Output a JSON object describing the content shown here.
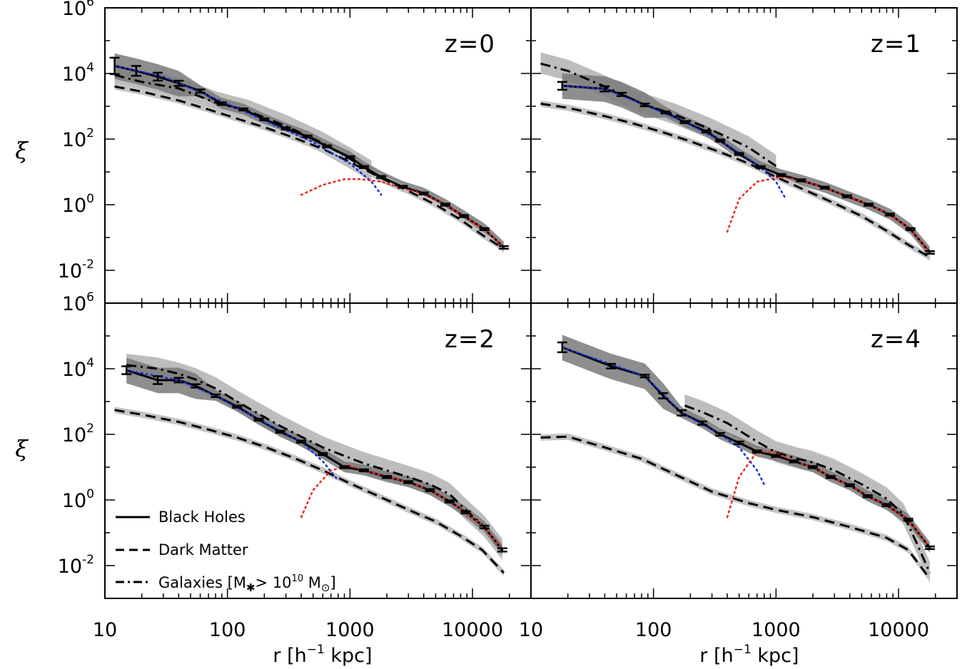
{
  "chart_data": {
    "type": "line",
    "xscale": "log",
    "yscale": "log",
    "xlim": [
      10,
      30000
    ],
    "ylim": [
      0.001,
      1000000
    ],
    "xticks": [
      "10",
      "100",
      "1000",
      "10000"
    ],
    "yticks": [
      {
        "base": "10",
        "exp": "6"
      },
      {
        "base": "10",
        "exp": "4"
      },
      {
        "base": "10",
        "exp": "2"
      },
      {
        "base": "10",
        "exp": "0"
      },
      {
        "base": "10",
        "exp": "-2"
      }
    ],
    "xlabel": "r [h⁻¹ kpc]",
    "xlabel_main": "r  [h",
    "xlabel_exp": "−1",
    "xlabel_tail": " kpc]",
    "ylabel": "ξ",
    "colors": {
      "black_holes": "#000000",
      "dark_matter": "#000000",
      "galaxies": "#000000",
      "one_halo_term": "#1530d8",
      "two_halo_term": "#e8281e",
      "bh_band": "#7a7a7a",
      "galaxy_band": "#bdbdbd",
      "dm_trace": "#c4c4c4"
    },
    "legend": {
      "position": "lower-left of bottom-left panel",
      "entries": [
        {
          "style": "solid",
          "label": "Black Holes"
        },
        {
          "style": "dashed",
          "label": "Dark Matter"
        },
        {
          "style": "dash-dot",
          "label_main": "Galaxies [M",
          "label_sub": "✱",
          "label_mid": "> 10",
          "label_exp": "10",
          "label_tail": " M",
          "label_sun": "⊙",
          "label_end": "]"
        }
      ]
    },
    "panels": [
      {
        "label": "z=0",
        "black_holes": {
          "x": [
            12,
            18,
            27,
            40,
            60,
            90,
            135,
            200,
            300,
            450,
            650,
            1000,
            1300,
            1800,
            2700,
            4000,
            6000,
            8500,
            12500,
            18000
          ],
          "y": [
            17000,
            12000,
            8000,
            5000,
            2900,
            1200,
            800,
            400,
            210,
            120,
            60,
            28,
            14,
            7,
            3.5,
            2.2,
            1.0,
            0.45,
            0.18,
            0.05
          ],
          "err": [
            0.25,
            0.15,
            0.12,
            0.08,
            0.05,
            0.04,
            0.03,
            0.03,
            0.03,
            0.03,
            0.03,
            0.03,
            0.03,
            0.03,
            0.03,
            0.03,
            0.03,
            0.03,
            0.03,
            0.04
          ]
        },
        "dark_matter": {
          "x": [
            12,
            20,
            40,
            70,
            120,
            200,
            350,
            600,
            1000,
            1800,
            3000,
            5000,
            8000,
            12000,
            18000
          ],
          "y": [
            4000,
            2800,
            1500,
            800,
            420,
            230,
            110,
            50,
            20,
            6.5,
            2.6,
            1.0,
            0.35,
            0.12,
            0.045
          ]
        },
        "galaxies": {
          "x": [
            12,
            20,
            40,
            80,
            150,
            300,
            600,
            1000,
            1500
          ],
          "y": [
            9000,
            5500,
            3500,
            1300,
            700,
            250,
            75,
            25,
            10
          ]
        },
        "one_halo": {
          "x": [
            12,
            30,
            80,
            200,
            500,
            1000,
            1500,
            1800
          ],
          "y": [
            17000,
            8000,
            1700,
            370,
            80,
            18,
            5,
            2
          ]
        },
        "two_halo": {
          "x": [
            400,
            600,
            900,
            1200,
            1800,
            2700,
            4000,
            6000,
            8500,
            12500,
            18000
          ],
          "y": [
            2,
            4,
            6,
            6,
            5,
            3.2,
            2.1,
            1.0,
            0.45,
            0.18,
            0.05
          ]
        }
      },
      {
        "label": "z=1",
        "black_holes": {
          "x": [
            18,
            40,
            55,
            85,
            125,
            180,
            270,
            350,
            500,
            750,
            1100,
            1600,
            2500,
            3800,
            5700,
            8500,
            12500,
            18000
          ],
          "y": [
            4200,
            3400,
            2300,
            1100,
            650,
            330,
            170,
            90,
            35,
            14,
            8,
            5.5,
            3.3,
            1.8,
            1.0,
            0.5,
            0.18,
            0.035
          ],
          "err": [
            0.12,
            0.08,
            0.05,
            0.04,
            0.03,
            0.03,
            0.03,
            0.03,
            0.03,
            0.03,
            0.03,
            0.03,
            0.03,
            0.03,
            0.03,
            0.03,
            0.03,
            0.04
          ]
        },
        "dark_matter": {
          "x": [
            12,
            20,
            40,
            70,
            120,
            200,
            350,
            600,
            1000,
            1800,
            3000,
            5000,
            8000,
            12000,
            18000
          ],
          "y": [
            1200,
            900,
            500,
            290,
            160,
            85,
            40,
            18,
            7,
            2.6,
            1.1,
            0.45,
            0.16,
            0.06,
            0.025
          ]
        },
        "galaxies": {
          "x": [
            12,
            20,
            40,
            80,
            150,
            300,
            600,
            1000
          ],
          "y": [
            20000,
            12000,
            4000,
            1200,
            550,
            190,
            55,
            15
          ]
        },
        "one_halo": {
          "x": [
            18,
            40,
            85,
            180,
            350,
            700,
            1000,
            1200
          ],
          "y": [
            4200,
            3400,
            1100,
            330,
            90,
            17,
            5,
            1.5
          ]
        },
        "two_halo": {
          "x": [
            400,
            500,
            700,
            1100,
            1600,
            2500,
            3800,
            5700,
            8500,
            12500,
            18000
          ],
          "y": [
            0.15,
            1.5,
            5,
            7,
            5.5,
            3.3,
            1.8,
            1.0,
            0.5,
            0.18,
            0.035
          ]
        }
      },
      {
        "label": "z=2",
        "black_holes": {
          "x": [
            15,
            27,
            40,
            55,
            80,
            120,
            180,
            270,
            400,
            600,
            900,
            1300,
            2000,
            3000,
            4500,
            6500,
            8800,
            12500,
            17500
          ],
          "y": [
            9000,
            4500,
            4500,
            3000,
            1500,
            700,
            280,
            120,
            60,
            25,
            10,
            8,
            5,
            3.5,
            2.0,
            0.9,
            0.42,
            0.15,
            0.03
          ],
          "err": [
            0.12,
            0.12,
            0.07,
            0.05,
            0.04,
            0.03,
            0.03,
            0.03,
            0.03,
            0.03,
            0.03,
            0.03,
            0.03,
            0.03,
            0.03,
            0.03,
            0.03,
            0.04,
            0.05
          ]
        },
        "dark_matter": {
          "x": [
            12,
            20,
            40,
            70,
            120,
            200,
            350,
            600,
            1000,
            1800,
            3000,
            5000,
            8000,
            12000,
            18000
          ],
          "y": [
            550,
            400,
            240,
            140,
            80,
            42,
            19,
            8,
            3.2,
            1.2,
            0.5,
            0.22,
            0.08,
            0.03,
            0.006
          ]
        },
        "galaxies": {
          "x": [
            15,
            27,
            40,
            55,
            80,
            120,
            180,
            270,
            400,
            600,
            900,
            1300,
            2000,
            3000,
            4500,
            6500,
            8800,
            12500,
            17500
          ],
          "y": [
            13000,
            10000,
            7000,
            4700,
            2500,
            1000,
            420,
            180,
            85,
            40,
            22,
            13,
            8,
            5,
            3,
            1.5,
            0.5,
            0.15,
            0.03
          ]
        },
        "one_halo": {
          "x": [
            15,
            40,
            80,
            180,
            400,
            600,
            800
          ],
          "y": [
            9000,
            4500,
            1500,
            280,
            60,
            15,
            4
          ]
        },
        "two_halo": {
          "x": [
            400,
            500,
            700,
            1000,
            1300,
            2000,
            3000,
            4500,
            6500,
            8800,
            12500,
            17500
          ],
          "y": [
            0.3,
            2,
            8,
            11,
            8,
            5,
            3.5,
            2.0,
            0.9,
            0.42,
            0.15,
            0.03
          ]
        }
      },
      {
        "label": "z=4",
        "black_holes": {
          "x": [
            18,
            45,
            85,
            120,
            170,
            250,
            350,
            500,
            700,
            1000,
            1400,
            2000,
            2800,
            4000,
            5600,
            8000,
            12000,
            18000
          ],
          "y": [
            45000,
            12000,
            6000,
            1500,
            450,
            220,
            100,
            55,
            30,
            22,
            15,
            10,
            5,
            2.8,
            1.3,
            0.7,
            0.25,
            0.035
          ],
          "err": [
            0.15,
            0.07,
            0.04,
            0.08,
            0.08,
            0.05,
            0.04,
            0.04,
            0.03,
            0.03,
            0.03,
            0.03,
            0.03,
            0.03,
            0.03,
            0.03,
            0.03,
            0.04
          ]
        },
        "dark_matter": {
          "x": [
            12,
            20,
            40,
            80,
            150,
            300,
            600,
            1000,
            2000,
            4000,
            8000,
            12000,
            18000
          ],
          "y": [
            80,
            85,
            40,
            18,
            6,
            1.8,
            0.8,
            0.5,
            0.3,
            0.15,
            0.07,
            0.03,
            0.004
          ]
        },
        "galaxies": {
          "x": [
            180,
            250,
            400,
            700,
            1000,
            1500,
            2000,
            3000,
            5000,
            8000,
            11000,
            14000,
            18000
          ],
          "y": [
            750,
            480,
            220,
            60,
            28,
            18,
            14,
            8,
            3,
            1.1,
            0.35,
            0.05,
            0.006
          ]
        },
        "one_halo": {
          "x": [
            18,
            85,
            170,
            350,
            500,
            700,
            800
          ],
          "y": [
            45000,
            6000,
            450,
            100,
            40,
            8,
            3
          ]
        },
        "two_halo": {
          "x": [
            400,
            500,
            700,
            1000,
            1400,
            2000,
            2800,
            4000,
            5600,
            8000,
            12000,
            18000
          ],
          "y": [
            0.3,
            5,
            30,
            28,
            15,
            10,
            5,
            2.8,
            1.3,
            0.7,
            0.25,
            0.035
          ]
        }
      }
    ]
  }
}
